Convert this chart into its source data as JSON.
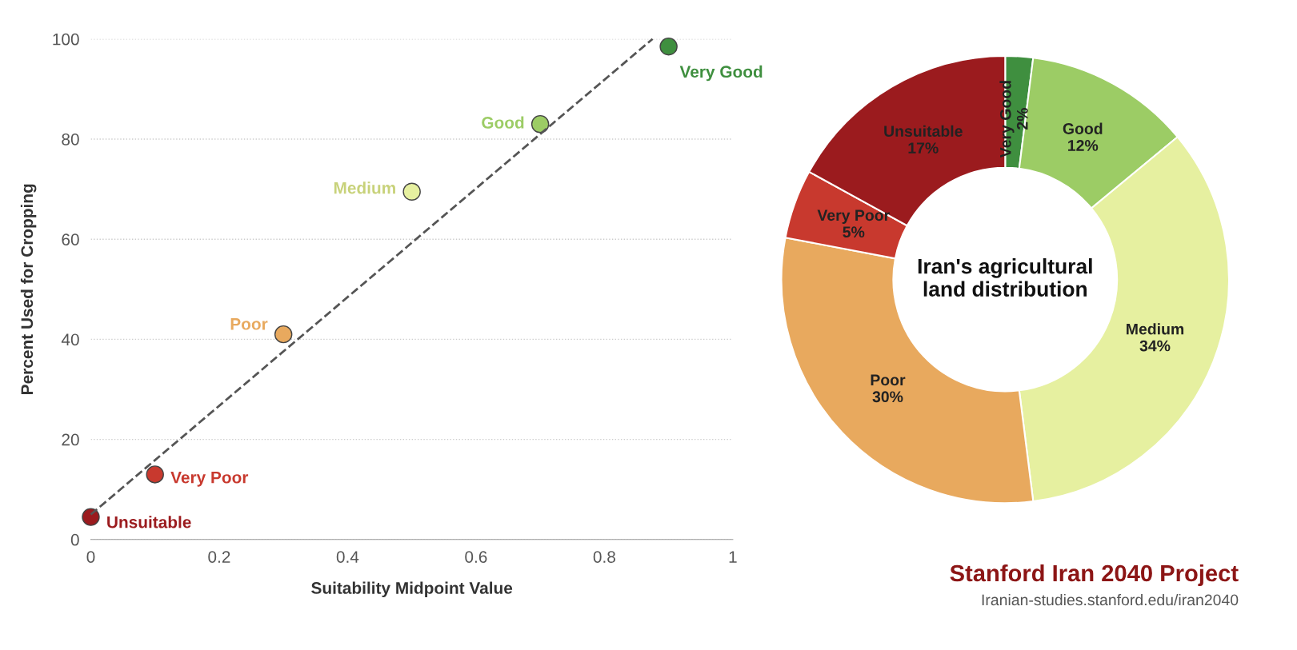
{
  "chart_data": [
    {
      "type": "scatter",
      "xlabel": "Suitability Midpoint Value",
      "ylabel": "Percent Used for Cropping",
      "xlim": [
        0,
        1
      ],
      "ylim": [
        0,
        100
      ],
      "xticks": [
        0,
        0.2,
        0.4,
        0.6,
        0.8,
        1
      ],
      "yticks": [
        0,
        20,
        40,
        60,
        80,
        100
      ],
      "grid": "y",
      "marker": "circle",
      "series": [
        {
          "name": "Unsuitable",
          "color": "#9b1b1e",
          "x": [
            0
          ],
          "values": [
            4.5
          ]
        },
        {
          "name": "Very Poor",
          "color": "#c8392e",
          "x": [
            0.1
          ],
          "values": [
            13
          ]
        },
        {
          "name": "Poor",
          "color": "#e8a95e",
          "x": [
            0.3
          ],
          "values": [
            41
          ]
        },
        {
          "name": "Medium",
          "color": "#e6f0a0",
          "x": [
            0.5
          ],
          "values": [
            69.5
          ]
        },
        {
          "name": "Good",
          "color": "#9ccc65",
          "x": [
            0.7
          ],
          "values": [
            83
          ]
        },
        {
          "name": "Very Good",
          "color": "#3f8f3f",
          "x": [
            0.9
          ],
          "values": [
            98.5
          ]
        },
        {
          "type": "line",
          "color": "#555555",
          "line_style": "dashed",
          "marker": "none",
          "x": [
            0,
            0.875
          ],
          "values": [
            5,
            100
          ]
        }
      ]
    },
    {
      "type": "donut",
      "title": "Iran's agricultural\nland distribution",
      "categories": [
        "Very Good",
        "Good",
        "Medium",
        "Poor",
        "Very Poor",
        "Unsuitable"
      ],
      "values": [
        2,
        12,
        34,
        30,
        5,
        17
      ],
      "value_labels": [
        "2%",
        "12%",
        "34%",
        "30%",
        "5%",
        "17%"
      ],
      "colors": [
        "#3f8f3f",
        "#9ccc65",
        "#e6f0a0",
        "#e8a95e",
        "#c8392e",
        "#9b1b1e"
      ],
      "annotations": [
        "Stanford Iran 2040 Project",
        "Iranian-studies.stanford.edu/iran2040"
      ]
    }
  ]
}
